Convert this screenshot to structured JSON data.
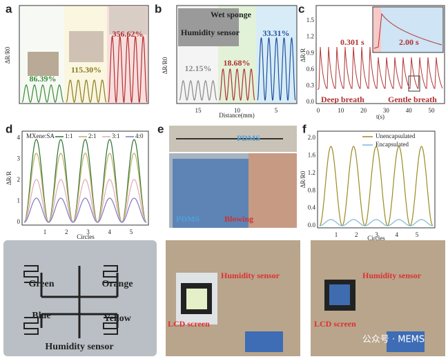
{
  "panels": {
    "a": {
      "label": "a",
      "y_label": "ΔR/R0",
      "annotations": [
        "86.39%",
        "115.30%",
        "356.62%"
      ]
    },
    "b": {
      "label": "b",
      "y_label": "ΔR/R0",
      "x_label": "Distance(mm)",
      "x_ticks": [
        "15",
        "10",
        "5"
      ],
      "annotations": [
        "Wet sponge",
        "Humidity sensor",
        "12.15%",
        "18.68%",
        "33.31%"
      ]
    },
    "c": {
      "label": "c",
      "y_label": "ΔR/R",
      "x_label": "t(s)",
      "y_ticks": [
        "0.0",
        "0.3",
        "0.6",
        "0.9",
        "1.2",
        "1.5"
      ],
      "x_ticks": [
        "0",
        "10",
        "20",
        "30",
        "40",
        "50"
      ],
      "annotations": [
        "0.301 s",
        "2.00 s",
        "Deep breath",
        "Gentle breath"
      ]
    },
    "d": {
      "label": "d",
      "y_label": "ΔR/R",
      "x_label": "Circles",
      "legend_title": "MXene:SA",
      "legend": [
        "1:1",
        "2:1",
        "3:1",
        "4:0"
      ],
      "y_ticks": [
        "0",
        "1",
        "2",
        "3",
        "4"
      ],
      "x_ticks": [
        "1",
        "2",
        "3",
        "4",
        "5"
      ]
    },
    "e": {
      "label": "e",
      "annotations": [
        "PDMS",
        "PDMS",
        "Blowing"
      ]
    },
    "f": {
      "label": "f",
      "y_label": "ΔR/R0",
      "x_label": "Circles",
      "legend": [
        "Unencapsulated",
        "Encapsulated"
      ],
      "y_ticks": [
        "0.0",
        "0.4",
        "0.8",
        "1.2",
        "1.6",
        "2.0"
      ],
      "x_ticks": [
        "1",
        "2",
        "3",
        "4",
        "5"
      ]
    }
  },
  "bottom": {
    "sensor_labels": [
      "Green",
      "Orange",
      "Blue",
      "Yellow",
      "Humidity sensor"
    ],
    "photo1": [
      "Humidity sensor",
      "LCD screen"
    ],
    "photo2": [
      "Humidity sensor",
      "LCD screen"
    ],
    "watermark": "公众号 · MEMS"
  }
}
